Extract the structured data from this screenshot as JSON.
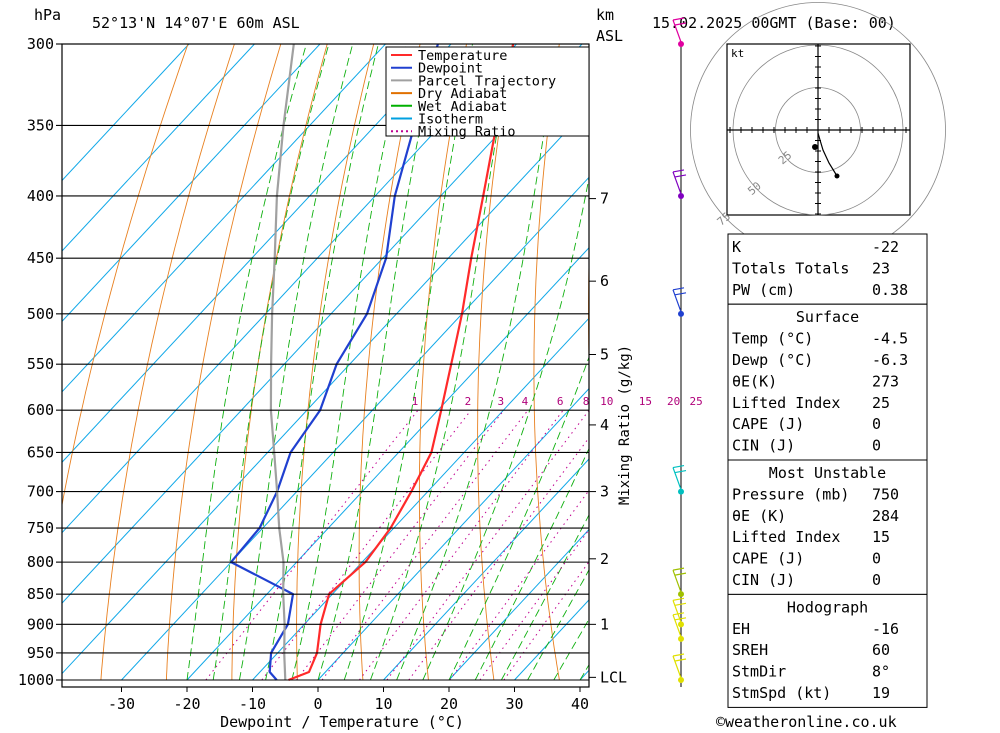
{
  "header": {
    "hpa_label": "hPa",
    "location": "52°13'N  14°07'E  60m  ASL",
    "km_label": "km",
    "asl_label": "ASL",
    "datetime": "15.02.2025  00GMT  (Base: 00)"
  },
  "legend": {
    "items": [
      {
        "label": "Temperature",
        "color": "#ff2a2a",
        "style": "solid"
      },
      {
        "label": "Dewpoint",
        "color": "#2040d0",
        "style": "solid"
      },
      {
        "label": "Parcel Trajectory",
        "color": "#a0a0a0",
        "style": "solid"
      },
      {
        "label": "Dry Adiabat",
        "color": "#e07000",
        "style": "solid"
      },
      {
        "label": "Wet Adiabat",
        "color": "#00b000",
        "style": "solid"
      },
      {
        "label": "Isotherm",
        "color": "#00a0e0",
        "style": "solid"
      },
      {
        "label": "Mixing Ratio",
        "color": "#c00090",
        "style": "dotted"
      }
    ]
  },
  "chart_data": {
    "type": "line",
    "subtype": "skew-T log-P",
    "xlabel": "Dewpoint / Temperature (°C)",
    "x_ticks": [
      -30,
      -20,
      -10,
      0,
      10,
      20,
      30,
      40
    ],
    "x_range": [
      -40,
      40
    ],
    "pressure_levels": [
      300,
      350,
      400,
      450,
      500,
      550,
      600,
      650,
      700,
      750,
      800,
      850,
      900,
      950,
      1000
    ],
    "y_scale": "log",
    "y_range_hpa": [
      1000,
      300
    ],
    "km_ticks": [
      {
        "label": "7",
        "p": 402
      },
      {
        "label": "6",
        "p": 470
      },
      {
        "label": "5",
        "p": 540
      },
      {
        "label": "4",
        "p": 617
      },
      {
        "label": "3",
        "p": 700
      },
      {
        "label": "2",
        "p": 795
      },
      {
        "label": "1",
        "p": 900
      },
      {
        "label": "LCL",
        "p": 995
      }
    ],
    "mixing_ratio_label": "Mixing Ratio (g/kg)",
    "mixing_ratio_values": [
      1,
      2,
      3,
      4,
      6,
      8,
      10,
      15,
      20,
      25
    ],
    "series": [
      {
        "name": "Temperature",
        "color": "#ff2a2a",
        "points": [
          {
            "p": 1000,
            "t": -4.5
          },
          {
            "p": 985,
            "t": -2.5
          },
          {
            "p": 950,
            "t": -4.0
          },
          {
            "p": 900,
            "t": -7.5
          },
          {
            "p": 850,
            "t": -10.5
          },
          {
            "p": 800,
            "t": -9.5
          },
          {
            "p": 750,
            "t": -10.5
          },
          {
            "p": 700,
            "t": -12.5
          },
          {
            "p": 650,
            "t": -15.0
          },
          {
            "p": 600,
            "t": -19.5
          },
          {
            "p": 550,
            "t": -24.5
          },
          {
            "p": 500,
            "t": -30.0
          },
          {
            "p": 450,
            "t": -36.5
          },
          {
            "p": 400,
            "t": -43.5
          },
          {
            "p": 350,
            "t": -51.5
          },
          {
            "p": 300,
            "t": -60.5
          }
        ]
      },
      {
        "name": "Dewpoint",
        "color": "#2040d0",
        "points": [
          {
            "p": 1000,
            "t": -6.3
          },
          {
            "p": 985,
            "t": -8.5
          },
          {
            "p": 950,
            "t": -11.0
          },
          {
            "p": 900,
            "t": -12.5
          },
          {
            "p": 850,
            "t": -16.0
          },
          {
            "p": 800,
            "t": -30.0
          },
          {
            "p": 750,
            "t": -30.5
          },
          {
            "p": 700,
            "t": -33.0
          },
          {
            "p": 650,
            "t": -36.5
          },
          {
            "p": 600,
            "t": -38.0
          },
          {
            "p": 550,
            "t": -42.0
          },
          {
            "p": 500,
            "t": -44.5
          },
          {
            "p": 450,
            "t": -49.5
          },
          {
            "p": 400,
            "t": -57.0
          },
          {
            "p": 350,
            "t": -64.0
          },
          {
            "p": 300,
            "t": -72.0
          }
        ]
      },
      {
        "name": "Parcel Trajectory",
        "color": "#a0a0a0",
        "points": [
          {
            "p": 1000,
            "t": -5.0
          },
          {
            "p": 950,
            "t": -9.0
          },
          {
            "p": 900,
            "t": -13.0
          },
          {
            "p": 850,
            "t": -17.5
          },
          {
            "p": 800,
            "t": -22.0
          },
          {
            "p": 750,
            "t": -27.5
          },
          {
            "p": 700,
            "t": -33.0
          },
          {
            "p": 650,
            "t": -39.0
          },
          {
            "p": 600,
            "t": -45.5
          },
          {
            "p": 550,
            "t": -52.0
          },
          {
            "p": 500,
            "t": -59.0
          },
          {
            "p": 450,
            "t": -66.5
          },
          {
            "p": 400,
            "t": -75.0
          },
          {
            "p": 350,
            "t": -84.0
          },
          {
            "p": 300,
            "t": -94.0
          }
        ]
      }
    ]
  },
  "wind_profile": {
    "levels": [
      {
        "p": 300,
        "color": "#e000a0"
      },
      {
        "p": 400,
        "color": "#8000c0"
      },
      {
        "p": 500,
        "color": "#2040d0"
      },
      {
        "p": 700,
        "color": "#00c0c0"
      },
      {
        "p": 850,
        "color": "#a0c000"
      },
      {
        "p": 900,
        "color": "#e0e000"
      },
      {
        "p": 925,
        "color": "#e0e000"
      },
      {
        "p": 1000,
        "color": "#e0e000"
      }
    ]
  },
  "hodograph": {
    "unit": "kt",
    "ring_labels": [
      "25",
      "50",
      "75"
    ]
  },
  "indices": {
    "general": [
      {
        "label": "K",
        "value": "-22"
      },
      {
        "label": "Totals Totals",
        "value": "23"
      },
      {
        "label": "PW (cm)",
        "value": "0.38"
      }
    ],
    "surface_title": "Surface",
    "surface": [
      {
        "label": "Temp (°C)",
        "value": "-4.5"
      },
      {
        "label": "Dewp (°C)",
        "value": "-6.3"
      },
      {
        "label": "θE(K)",
        "value": "273"
      },
      {
        "label": "Lifted Index",
        "value": "25"
      },
      {
        "label": "CAPE (J)",
        "value": "0"
      },
      {
        "label": "CIN (J)",
        "value": "0"
      }
    ],
    "mu_title": "Most Unstable",
    "mu": [
      {
        "label": "Pressure (mb)",
        "value": "750"
      },
      {
        "label": "θE (K)",
        "value": "284"
      },
      {
        "label": "Lifted Index",
        "value": "15"
      },
      {
        "label": "CAPE (J)",
        "value": "0"
      },
      {
        "label": "CIN (J)",
        "value": "0"
      }
    ],
    "hodo_title": "Hodograph",
    "hodo": [
      {
        "label": "EH",
        "value": "-16"
      },
      {
        "label": "SREH",
        "value": "60"
      },
      {
        "label": "StmDir",
        "value": "8°"
      },
      {
        "label": "StmSpd (kt)",
        "value": "19"
      }
    ]
  },
  "footer": {
    "copyright": "©weatheronline.co.uk"
  }
}
